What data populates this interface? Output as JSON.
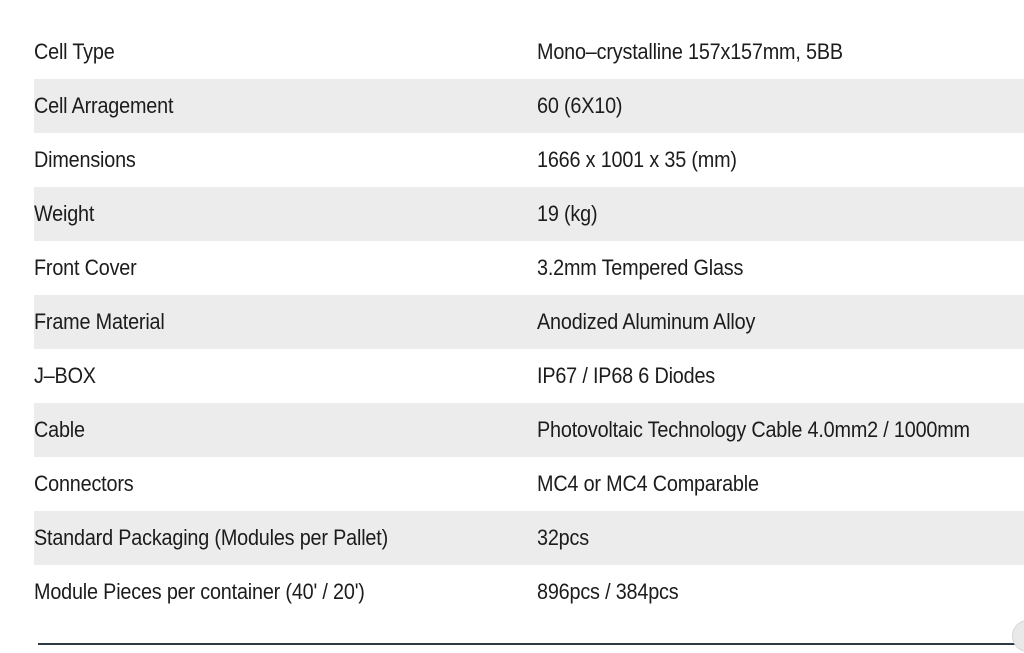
{
  "specs": [
    {
      "label": "Cell Type",
      "value": "Mono–crystalline 157x157mm, 5BB"
    },
    {
      "label": "Cell Arragement",
      "value": "60 (6X10)"
    },
    {
      "label": "Dimensions",
      "value": "1666 x 1001 x 35 (mm)"
    },
    {
      "label": "Weight",
      "value": "19 (kg)"
    },
    {
      "label": "Front Cover",
      "value": "3.2mm Tempered Glass"
    },
    {
      "label": "Frame Material",
      "value": "Anodized Aluminum Alloy"
    },
    {
      "label": "J–BOX",
      "value": "IP67 / IP68  6 Diodes"
    },
    {
      "label": "Cable",
      "value": "Photovoltaic Technology Cable 4.0mm2 / 1000mm"
    },
    {
      "label": "Connectors",
      "value": "MC4 or MC4 Comparable"
    },
    {
      "label": "Standard Packaging (Modules per Pallet)",
      "value": "32pcs"
    },
    {
      "label": "Module Pieces per container (40' / 20')",
      "value": "896pcs / 384pcs"
    }
  ],
  "colors": {
    "row_shade": "#ececec",
    "text": "#1c1c1c",
    "rule": "#2d3a44"
  }
}
